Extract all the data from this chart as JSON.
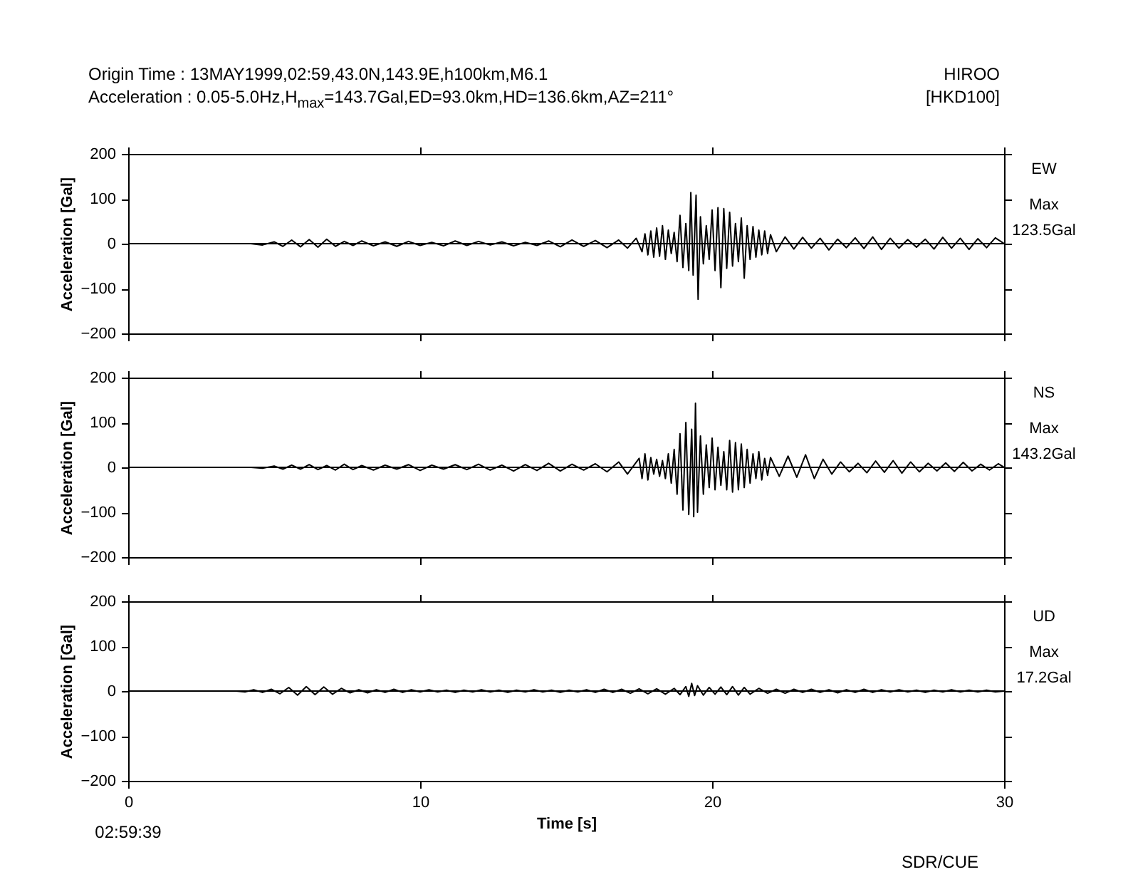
{
  "chart_data": [
    {
      "type": "line",
      "title": "Origin Time : 13MAY1999,02:59,43.0N,143.9E,h100km,M6.1",
      "subtitle": "Acceleration : 0.05-5.0Hz,H$_{max}$=143.7Gal,ED=93.0km,HD=136.6km,AZ=211°",
      "ylabel": "Acceleration [Gal]",
      "annotations": [
        "HIROO",
        "[HKD100]",
        "EW",
        "Max",
        "123.5Gal"
      ],
      "xlim": [
        0,
        30
      ],
      "xticks": [
        0,
        10,
        20,
        30
      ],
      "ylim": [
        -200,
        200
      ],
      "yticks": [
        -200,
        -100,
        0,
        100,
        200
      ],
      "tick_labels": "y",
      "ref_lines": [
        {
          "axis": "y",
          "value": 0,
          "color": "#000000"
        }
      ],
      "series": [
        {
          "color": "#000000",
          "x": [
            4.2,
            4.6,
            5.0,
            5.3,
            5.6,
            5.9,
            6.2,
            6.5,
            6.8,
            7.1,
            7.4,
            7.7,
            8.0,
            8.4,
            8.8,
            9.2,
            9.6,
            10.0,
            10.4,
            10.8,
            11.2,
            11.6,
            12.0,
            12.4,
            12.8,
            13.2,
            13.6,
            14.0,
            14.4,
            14.8,
            15.2,
            15.6,
            16.0,
            16.4,
            16.8,
            17.1,
            17.4,
            17.6,
            17.7,
            17.8,
            17.9,
            18.0,
            18.1,
            18.2,
            18.3,
            18.4,
            18.5,
            18.6,
            18.7,
            18.8,
            18.9,
            19.0,
            19.1,
            19.2,
            19.27,
            19.35,
            19.45,
            19.52,
            19.6,
            19.7,
            19.8,
            19.9,
            20.0,
            20.1,
            20.2,
            20.3,
            20.4,
            20.5,
            20.6,
            20.7,
            20.8,
            20.9,
            21.0,
            21.1,
            21.2,
            21.3,
            21.4,
            21.5,
            21.6,
            21.7,
            21.8,
            21.9,
            22.0,
            22.2,
            22.5,
            22.8,
            23.1,
            23.4,
            23.7,
            24.0,
            24.3,
            24.6,
            24.9,
            25.2,
            25.5,
            25.8,
            26.1,
            26.4,
            26.7,
            27.0,
            27.3,
            27.6,
            27.9,
            28.2,
            28.5,
            28.8,
            29.1,
            29.4,
            29.7,
            30.0
          ],
          "values": [
            0,
            -3,
            4,
            -6,
            8,
            -7,
            9,
            -8,
            10,
            -6,
            5,
            -4,
            6,
            -5,
            4,
            -6,
            5,
            -4,
            3,
            -5,
            6,
            -4,
            5,
            -3,
            4,
            -5,
            3,
            -4,
            6,
            -7,
            8,
            -6,
            7,
            -9,
            8,
            -10,
            12,
            -18,
            22,
            -25,
            28,
            -30,
            35,
            -28,
            40,
            -35,
            30,
            -22,
            25,
            -40,
            63,
            -53,
            45,
            -60,
            114,
            -70,
            108,
            -124,
            60,
            -45,
            40,
            -35,
            75,
            -60,
            80,
            -98,
            78,
            -55,
            70,
            -50,
            45,
            -40,
            57,
            -77,
            40,
            -35,
            38,
            -30,
            30,
            -25,
            28,
            -22,
            20,
            -18,
            15,
            -12,
            14,
            -10,
            12,
            -14,
            10,
            -9,
            13,
            -11,
            15,
            -13,
            12,
            -10,
            9,
            -8,
            10,
            -12,
            14,
            -10,
            12,
            -13,
            11,
            -9,
            13,
            0
          ]
        }
      ]
    },
    {
      "type": "line",
      "ylabel": "Acceleration [Gal]",
      "annotations": [
        "NS",
        "Max",
        "143.2Gal"
      ],
      "xlim": [
        0,
        30
      ],
      "xticks": [
        0,
        10,
        20,
        30
      ],
      "ylim": [
        -200,
        200
      ],
      "yticks": [
        -200,
        -100,
        0,
        100,
        200
      ],
      "tick_labels": "y",
      "ref_lines": [
        {
          "axis": "y",
          "value": 0,
          "color": "#000000"
        }
      ],
      "series": [
        {
          "color": "#000000",
          "x": [
            4.2,
            4.6,
            5.0,
            5.3,
            5.6,
            5.9,
            6.2,
            6.5,
            6.8,
            7.1,
            7.4,
            7.7,
            8.0,
            8.4,
            8.8,
            9.2,
            9.6,
            10.0,
            10.4,
            10.8,
            11.2,
            11.6,
            12.0,
            12.4,
            12.8,
            13.2,
            13.6,
            14.0,
            14.4,
            14.8,
            15.2,
            15.6,
            16.0,
            16.4,
            16.8,
            17.1,
            17.5,
            17.6,
            17.7,
            17.8,
            17.9,
            18.0,
            18.1,
            18.2,
            18.3,
            18.4,
            18.5,
            18.6,
            18.7,
            18.8,
            18.9,
            19.0,
            19.1,
            19.2,
            19.3,
            19.37,
            19.43,
            19.5,
            19.6,
            19.7,
            19.8,
            19.9,
            20.0,
            20.1,
            20.2,
            20.3,
            20.4,
            20.5,
            20.6,
            20.7,
            20.8,
            20.9,
            21.0,
            21.1,
            21.2,
            21.3,
            21.4,
            21.5,
            21.6,
            21.7,
            21.8,
            21.9,
            22.0,
            22.3,
            22.6,
            22.9,
            23.2,
            23.5,
            23.8,
            24.1,
            24.4,
            24.7,
            25.0,
            25.3,
            25.6,
            25.9,
            26.2,
            26.5,
            26.8,
            27.1,
            27.4,
            27.7,
            28.0,
            28.3,
            28.6,
            28.9,
            29.2,
            29.5,
            29.8,
            30.0
          ],
          "values": [
            0,
            -2,
            3,
            -4,
            5,
            -4,
            6,
            -5,
            4,
            -6,
            7,
            -5,
            4,
            -6,
            5,
            -4,
            6,
            -7,
            5,
            -4,
            6,
            -5,
            7,
            -6,
            5,
            -8,
            6,
            -7,
            9,
            -8,
            7,
            -6,
            8,
            -10,
            12,
            -15,
            20,
            -25,
            30,
            -28,
            22,
            -15,
            18,
            -20,
            15,
            -25,
            30,
            -35,
            40,
            -60,
            75,
            -95,
            100,
            -105,
            85,
            -110,
            143,
            -100,
            70,
            -60,
            50,
            -45,
            65,
            -50,
            45,
            -40,
            35,
            -50,
            60,
            -55,
            55,
            -50,
            52,
            -45,
            40,
            -35,
            30,
            -25,
            35,
            -28,
            20,
            -18,
            22,
            -20,
            25,
            -22,
            28,
            -25,
            18,
            -15,
            12,
            -10,
            9,
            -12,
            14,
            -11,
            15,
            -13,
            12,
            -10,
            9,
            -8,
            10,
            -9,
            11,
            -8,
            7,
            -6,
            8,
            0
          ]
        }
      ]
    },
    {
      "type": "line",
      "xlabel": "Time [s]",
      "ylabel": "Acceleration [Gal]",
      "annotations": [
        "UD",
        "Max",
        "17.2Gal",
        "02:59:39",
        "SDR/CUE"
      ],
      "xlim": [
        0,
        30
      ],
      "xticks": [
        0,
        10,
        20,
        30
      ],
      "ylim": [
        -200,
        200
      ],
      "yticks": [
        -200,
        -100,
        0,
        100,
        200
      ],
      "ref_lines": [
        {
          "axis": "y",
          "value": 0,
          "color": "#000000"
        }
      ],
      "series": [
        {
          "color": "#000000",
          "x": [
            3.7,
            4.0,
            4.3,
            4.6,
            4.9,
            5.2,
            5.5,
            5.8,
            6.1,
            6.4,
            6.7,
            7.0,
            7.3,
            7.6,
            7.9,
            8.2,
            8.5,
            8.8,
            9.1,
            9.4,
            9.7,
            10.0,
            10.3,
            10.6,
            10.9,
            11.2,
            11.5,
            11.8,
            12.1,
            12.4,
            12.7,
            13.0,
            13.3,
            13.6,
            13.9,
            14.2,
            14.5,
            14.8,
            15.1,
            15.4,
            15.7,
            16.0,
            16.3,
            16.6,
            16.9,
            17.2,
            17.5,
            17.8,
            18.1,
            18.4,
            18.7,
            18.9,
            19.1,
            19.2,
            19.3,
            19.4,
            19.5,
            19.7,
            19.9,
            20.1,
            20.3,
            20.5,
            20.7,
            20.9,
            21.1,
            21.3,
            21.6,
            21.9,
            22.2,
            22.5,
            22.8,
            23.1,
            23.4,
            23.7,
            24.0,
            24.3,
            24.6,
            24.9,
            25.2,
            25.5,
            25.8,
            26.1,
            26.4,
            26.7,
            27.0,
            27.3,
            27.6,
            27.9,
            28.2,
            28.5,
            28.8,
            29.1,
            29.4,
            29.7,
            30.0
          ],
          "values": [
            0,
            -2,
            3,
            -3,
            4,
            -6,
            8,
            -9,
            10,
            -8,
            9,
            -7,
            6,
            -4,
            3,
            -4,
            3,
            -3,
            4,
            -3,
            3,
            -2,
            3,
            -2,
            2,
            -3,
            2,
            -2,
            3,
            -2,
            2,
            -3,
            2,
            -2,
            3,
            -2,
            2,
            -3,
            2,
            -2,
            3,
            -3,
            4,
            -3,
            4,
            -5,
            5,
            -6,
            5,
            -7,
            6,
            -8,
            10,
            -12,
            17,
            -10,
            12,
            -9,
            8,
            -7,
            9,
            -8,
            10,
            -9,
            8,
            -7,
            6,
            -5,
            4,
            -5,
            4,
            -3,
            4,
            -3,
            3,
            -4,
            3,
            -3,
            4,
            -3,
            3,
            -2,
            3,
            -2,
            2,
            -3,
            2,
            -2,
            3,
            -2,
            2,
            -2,
            2,
            -2,
            0
          ]
        }
      ]
    }
  ]
}
